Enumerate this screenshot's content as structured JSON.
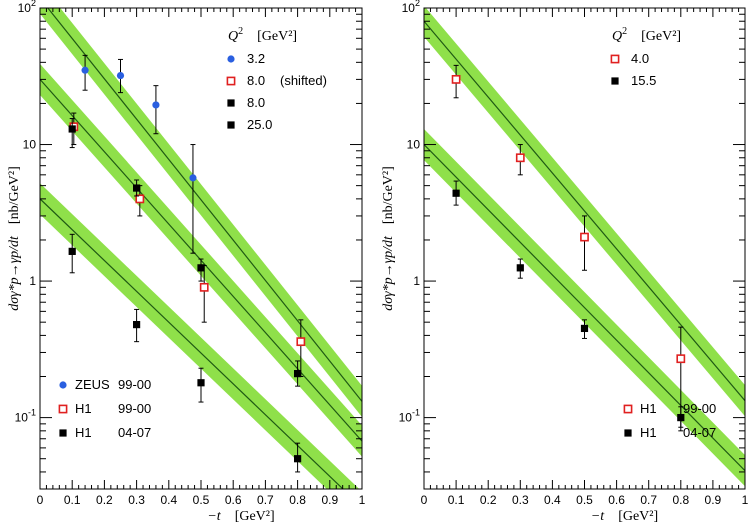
{
  "chart_data": [
    {
      "type": "scatter",
      "panel": "left",
      "xlabel_var": "−t",
      "xlabel_unit": "[GeV²]",
      "ylabel_expr": "dσγ*p→γp/dt",
      "ylabel_unit": "[nb/GeV²]",
      "xlim": [
        0,
        1
      ],
      "ylim": [
        0.03,
        100
      ],
      "yscale": "log",
      "x_ticks": [
        "0",
        "0.1",
        "0.2",
        "0.3",
        "0.4",
        "0.5",
        "0.6",
        "0.7",
        "0.8",
        "0.9",
        "1"
      ],
      "y_ticks": [
        {
          "value": 0.1,
          "base": "10",
          "exp": "-1"
        },
        {
          "value": 1,
          "base": "1",
          "exp": ""
        },
        {
          "value": 10,
          "base": "10",
          "exp": ""
        },
        {
          "value": 100,
          "base": "10",
          "exp": "2"
        }
      ],
      "q2_header": {
        "var": "Q",
        "exp": "2",
        "unit": "[GeV²]"
      },
      "q2_legend": [
        {
          "marker": "blue-circle",
          "label": "3.2"
        },
        {
          "marker": "red-open-square",
          "label": "8.0",
          "note": "(shifted)"
        },
        {
          "marker": "black-square",
          "label": "8.0"
        },
        {
          "marker": "black-square",
          "label": "25.0"
        }
      ],
      "experiment_legend": [
        {
          "marker": "blue-circle",
          "name": "ZEUS",
          "period": "99-00"
        },
        {
          "marker": "red-open-square",
          "name": "H1",
          "period": "99-00"
        },
        {
          "marker": "black-square",
          "name": "H1",
          "period": "04-07"
        }
      ],
      "series": [
        {
          "name": "ZEUS 99-00, Q²=3.2",
          "marker": "blue-circle",
          "points": [
            {
              "x": 0.14,
              "y": 35,
              "lo": 25,
              "hi": 45
            },
            {
              "x": 0.25,
              "y": 32,
              "lo": 24,
              "hi": 42
            },
            {
              "x": 0.36,
              "y": 19.5,
              "lo": 12,
              "hi": 27
            },
            {
              "x": 0.475,
              "y": 5.7,
              "lo": 1.6,
              "hi": 10
            }
          ]
        },
        {
          "name": "H1 99-00, Q²=8.0 (shifted)",
          "marker": "red-open-square",
          "points": [
            {
              "x": 0.105,
              "y": 13.5,
              "lo": 10,
              "hi": 17
            },
            {
              "x": 0.31,
              "y": 4.0,
              "lo": 3.0,
              "hi": 5.0
            },
            {
              "x": 0.51,
              "y": 0.9,
              "lo": 0.5,
              "hi": 1.3
            },
            {
              "x": 0.81,
              "y": 0.36,
              "lo": 0.2,
              "hi": 0.52
            }
          ]
        },
        {
          "name": "H1 04-07, Q²=8.0",
          "marker": "black-square",
          "points": [
            {
              "x": 0.1,
              "y": 13,
              "lo": 9.5,
              "hi": 15.5
            },
            {
              "x": 0.3,
              "y": 4.8,
              "lo": 4.2,
              "hi": 5.5
            },
            {
              "x": 0.5,
              "y": 1.25,
              "lo": 1.0,
              "hi": 1.45
            },
            {
              "x": 0.8,
              "y": 0.21,
              "lo": 0.17,
              "hi": 0.26
            }
          ]
        },
        {
          "name": "H1 04-07, Q²=25.0",
          "marker": "black-square",
          "points": [
            {
              "x": 0.1,
              "y": 1.65,
              "lo": 1.15,
              "hi": 2.2
            },
            {
              "x": 0.3,
              "y": 0.48,
              "lo": 0.36,
              "hi": 0.62
            },
            {
              "x": 0.5,
              "y": 0.18,
              "lo": 0.13,
              "hi": 0.23
            },
            {
              "x": 0.8,
              "y": 0.05,
              "lo": 0.04,
              "hi": 0.065
            }
          ]
        }
      ],
      "fits": [
        {
          "name": "fit Q²=3.2",
          "y0": 118,
          "slope_b": 6.8,
          "band_factor": 1.3
        },
        {
          "name": "fit Q²=8.0",
          "y0": 30,
          "slope_b": 6.1,
          "band_factor": 1.3
        },
        {
          "name": "fit Q²=25.0",
          "y0": 4.0,
          "slope_b": 5.2,
          "band_factor": 1.3
        }
      ]
    },
    {
      "type": "scatter",
      "panel": "right",
      "xlabel_var": "−t",
      "xlabel_unit": "[GeV²]",
      "ylabel_expr": "dσγ*p→γp/dt",
      "ylabel_unit": "[nb/GeV²]",
      "xlim": [
        0,
        1
      ],
      "ylim": [
        0.03,
        100
      ],
      "yscale": "log",
      "x_ticks": [
        "0",
        "0.1",
        "0.2",
        "0.3",
        "0.4",
        "0.5",
        "0.6",
        "0.7",
        "0.8",
        "0.9",
        "1"
      ],
      "y_ticks": [
        {
          "value": 0.1,
          "base": "10",
          "exp": "-1"
        },
        {
          "value": 1,
          "base": "1",
          "exp": ""
        },
        {
          "value": 10,
          "base": "10",
          "exp": ""
        },
        {
          "value": 100,
          "base": "10",
          "exp": "2"
        }
      ],
      "q2_header": {
        "var": "Q",
        "exp": "2",
        "unit": "[GeV²]"
      },
      "q2_legend": [
        {
          "marker": "red-open-square",
          "label": "4.0"
        },
        {
          "marker": "black-square",
          "label": "15.5"
        }
      ],
      "experiment_legend": [
        {
          "marker": "red-open-square",
          "name": "H1",
          "period": "99-00"
        },
        {
          "marker": "black-square",
          "name": "H1",
          "period": "04-07"
        }
      ],
      "series": [
        {
          "name": "H1 99-00, Q²=4.0",
          "marker": "red-open-square",
          "points": [
            {
              "x": 0.1,
              "y": 30,
              "lo": 22,
              "hi": 38
            },
            {
              "x": 0.3,
              "y": 8.0,
              "lo": 6.0,
              "hi": 10.0
            },
            {
              "x": 0.5,
              "y": 2.1,
              "lo": 1.2,
              "hi": 3.0
            },
            {
              "x": 0.8,
              "y": 0.27,
              "lo": 0.08,
              "hi": 0.46
            }
          ]
        },
        {
          "name": "H1 04-07, Q²=15.5",
          "marker": "black-square",
          "points": [
            {
              "x": 0.1,
              "y": 4.4,
              "lo": 3.6,
              "hi": 5.4
            },
            {
              "x": 0.3,
              "y": 1.25,
              "lo": 1.05,
              "hi": 1.45
            },
            {
              "x": 0.5,
              "y": 0.45,
              "lo": 0.38,
              "hi": 0.52
            },
            {
              "x": 0.8,
              "y": 0.1,
              "lo": 0.085,
              "hi": 0.12
            }
          ]
        }
      ],
      "fits": [
        {
          "name": "fit Q²=4.0",
          "y0": 80,
          "slope_b": 6.4,
          "band_factor": 1.3
        },
        {
          "name": "fit Q²=15.5",
          "y0": 10,
          "slope_b": 5.5,
          "band_factor": 1.3
        }
      ]
    }
  ],
  "colors": {
    "band": "#8fe04a",
    "line": "#1f5a14",
    "zeus": "#2a5fe0",
    "h1_9900": "#e02020",
    "h1_0407": "#000000"
  }
}
